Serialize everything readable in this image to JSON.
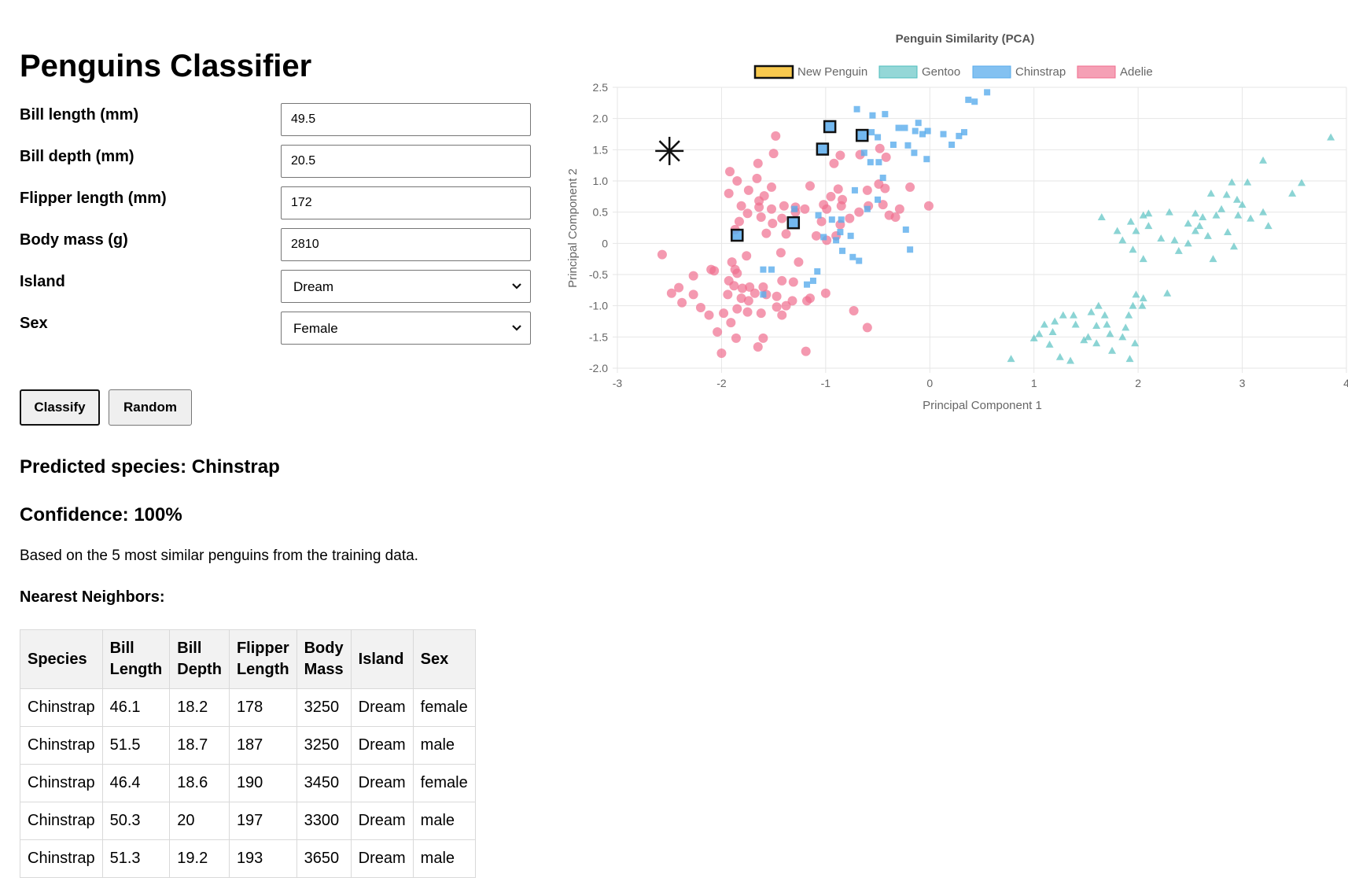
{
  "page": {
    "title": "Penguins Classifier"
  },
  "form": {
    "bill_length": {
      "label": "Bill length (mm)",
      "value": "49.5"
    },
    "bill_depth": {
      "label": "Bill depth (mm)",
      "value": "20.5"
    },
    "flipper_length": {
      "label": "Flipper length (mm)",
      "value": "172"
    },
    "body_mass": {
      "label": "Body mass (g)",
      "value": "2810"
    },
    "island": {
      "label": "Island",
      "value": "Dream"
    },
    "sex": {
      "label": "Sex",
      "value": "Female"
    }
  },
  "buttons": {
    "classify": "Classify",
    "random": "Random"
  },
  "result": {
    "prediction": "Predicted species: Chinstrap",
    "confidence": "Confidence: 100%",
    "note": "Based on the 5 most similar penguins from the training data.",
    "neighbors_heading": "Nearest Neighbors:"
  },
  "neighbors_table": {
    "headers": [
      [
        "Species"
      ],
      [
        "Bill",
        "Length"
      ],
      [
        "Bill",
        "Depth"
      ],
      [
        "Flipper",
        "Length"
      ],
      [
        "Body",
        "Mass"
      ],
      [
        "Island"
      ],
      [
        "Sex"
      ]
    ],
    "rows": [
      [
        "Chinstrap",
        "46.1",
        "18.2",
        "178",
        "3250",
        "Dream",
        "female"
      ],
      [
        "Chinstrap",
        "51.5",
        "18.7",
        "187",
        "3250",
        "Dream",
        "male"
      ],
      [
        "Chinstrap",
        "46.4",
        "18.6",
        "190",
        "3450",
        "Dream",
        "female"
      ],
      [
        "Chinstrap",
        "50.3",
        "20",
        "197",
        "3300",
        "Dream",
        "male"
      ],
      [
        "Chinstrap",
        "51.3",
        "19.2",
        "193",
        "3650",
        "Dream",
        "male"
      ]
    ]
  },
  "colors": {
    "adelie": "#f06d8e",
    "chinstrap": "#5aacec",
    "gentoo": "#4dbdbd",
    "new_penguin_fill": "#f8c94e",
    "grid": "#e6e6e6",
    "axis_text": "#666666"
  },
  "chart_data": {
    "type": "scatter",
    "title": "Penguin Similarity (PCA)",
    "xlabel": "Principal Component 1",
    "ylabel": "Principal Component 2",
    "xlim": [
      -3,
      4
    ],
    "ylim": [
      -2.0,
      2.5
    ],
    "x_ticks": [
      "-3",
      "-2",
      "-1",
      "0",
      "1",
      "2",
      "3",
      "4"
    ],
    "y_ticks": [
      "2.5",
      "2.0",
      "1.5",
      "1.0",
      "0.5",
      "0",
      "-0.5",
      "-1.0",
      "-1.5",
      "-2.0"
    ],
    "grid": true,
    "legend_position": "top",
    "legend": [
      "New Penguin",
      "Gentoo",
      "Chinstrap",
      "Adelie"
    ],
    "series": [
      {
        "name": "Adelie",
        "marker": "circle",
        "points": [
          [
            -1.48,
            1.72
          ],
          [
            -1.5,
            1.44
          ],
          [
            -1.65,
            1.28
          ],
          [
            -1.92,
            1.15
          ],
          [
            -1.66,
            1.04
          ],
          [
            -1.52,
            0.9
          ],
          [
            -1.74,
            0.85
          ],
          [
            -1.85,
            1.0
          ],
          [
            -1.59,
            0.76
          ],
          [
            -1.64,
            0.68
          ],
          [
            -1.93,
            0.8
          ],
          [
            -1.81,
            0.6
          ],
          [
            -1.64,
            0.58
          ],
          [
            -1.52,
            0.55
          ],
          [
            -1.4,
            0.6
          ],
          [
            -1.29,
            0.58
          ],
          [
            -1.75,
            0.48
          ],
          [
            -1.62,
            0.42
          ],
          [
            -1.42,
            0.4
          ],
          [
            -1.51,
            0.32
          ],
          [
            -1.83,
            0.35
          ],
          [
            -1.87,
            0.22
          ],
          [
            -1.57,
            0.16
          ],
          [
            -1.38,
            0.15
          ],
          [
            -1.29,
            0.5
          ],
          [
            -1.2,
            0.55
          ],
          [
            -1.02,
            0.62
          ],
          [
            -0.99,
            0.55
          ],
          [
            -0.85,
            0.6
          ],
          [
            -0.68,
            0.5
          ],
          [
            -0.59,
            0.6
          ],
          [
            -0.45,
            0.62
          ],
          [
            -0.29,
            0.55
          ],
          [
            -0.39,
            0.45
          ],
          [
            -0.84,
            0.7
          ],
          [
            -0.95,
            0.75
          ],
          [
            -0.88,
            0.87
          ],
          [
            -1.15,
            0.92
          ],
          [
            -0.6,
            0.85
          ],
          [
            -0.49,
            0.95
          ],
          [
            -0.43,
            0.88
          ],
          [
            -0.19,
            0.9
          ],
          [
            -0.01,
            0.6
          ],
          [
            -0.33,
            0.42
          ],
          [
            -1.04,
            0.35
          ],
          [
            -0.77,
            0.4
          ],
          [
            -0.86,
            0.3
          ],
          [
            -1.09,
            0.12
          ],
          [
            -0.99,
            0.05
          ],
          [
            -0.9,
            0.12
          ],
          [
            -0.92,
            1.28
          ],
          [
            -0.67,
            1.42
          ],
          [
            -0.42,
            1.38
          ],
          [
            -0.48,
            1.52
          ],
          [
            -0.86,
            1.41
          ],
          [
            -2.57,
            -0.18
          ],
          [
            -2.27,
            -0.52
          ],
          [
            -2.1,
            -0.42
          ],
          [
            -2.07,
            -0.44
          ],
          [
            -1.87,
            -0.42
          ],
          [
            -1.85,
            -0.48
          ],
          [
            -1.93,
            -0.6
          ],
          [
            -1.88,
            -0.68
          ],
          [
            -1.8,
            -0.72
          ],
          [
            -1.73,
            -0.7
          ],
          [
            -1.6,
            -0.7
          ],
          [
            -1.42,
            -0.6
          ],
          [
            -1.31,
            -0.62
          ],
          [
            -1.47,
            -0.85
          ],
          [
            -1.32,
            -0.92
          ],
          [
            -1.57,
            -0.82
          ],
          [
            -1.68,
            -0.8
          ],
          [
            -1.74,
            -0.92
          ],
          [
            -1.81,
            -0.88
          ],
          [
            -1.94,
            -0.82
          ],
          [
            -2.27,
            -0.82
          ],
          [
            -2.41,
            -0.71
          ],
          [
            -2.48,
            -0.8
          ],
          [
            -2.38,
            -0.95
          ],
          [
            -2.2,
            -1.03
          ],
          [
            -1.98,
            -1.12
          ],
          [
            -1.85,
            -1.05
          ],
          [
            -1.75,
            -1.1
          ],
          [
            -1.62,
            -1.12
          ],
          [
            -1.47,
            -1.02
          ],
          [
            -1.38,
            -1.0
          ],
          [
            -1.42,
            -1.15
          ],
          [
            -2.12,
            -1.15
          ],
          [
            -1.91,
            -1.27
          ],
          [
            -2.04,
            -1.42
          ],
          [
            -1.86,
            -1.52
          ],
          [
            -1.6,
            -1.52
          ],
          [
            -1.65,
            -1.66
          ],
          [
            -2.0,
            -1.76
          ],
          [
            -1.19,
            -1.73
          ],
          [
            -1.18,
            -0.92
          ],
          [
            -1.0,
            -0.8
          ],
          [
            -1.15,
            -0.88
          ],
          [
            -0.73,
            -1.08
          ],
          [
            -0.6,
            -1.35
          ],
          [
            -1.43,
            -0.15
          ],
          [
            -1.76,
            -0.2
          ],
          [
            -1.9,
            -0.3
          ],
          [
            -1.26,
            -0.3
          ]
        ]
      },
      {
        "name": "Chinstrap",
        "marker": "square",
        "points": [
          [
            0.37,
            2.3
          ],
          [
            0.43,
            2.27
          ],
          [
            0.55,
            2.42
          ],
          [
            -0.7,
            2.15
          ],
          [
            -0.55,
            2.05
          ],
          [
            -0.43,
            2.07
          ],
          [
            -0.3,
            1.85
          ],
          [
            -0.24,
            1.85
          ],
          [
            -0.11,
            1.93
          ],
          [
            -0.02,
            1.8
          ],
          [
            0.13,
            1.75
          ],
          [
            0.28,
            1.72
          ],
          [
            0.33,
            1.78
          ],
          [
            0.21,
            1.58
          ],
          [
            -0.15,
            1.45
          ],
          [
            -0.03,
            1.35
          ],
          [
            -0.21,
            1.57
          ],
          [
            -0.35,
            1.58
          ],
          [
            -0.5,
            1.7
          ],
          [
            -0.56,
            1.78
          ],
          [
            -0.63,
            1.45
          ],
          [
            -0.49,
            1.3
          ],
          [
            -0.57,
            1.3
          ],
          [
            -0.45,
            1.05
          ],
          [
            -0.07,
            1.75
          ],
          [
            -0.14,
            1.8
          ],
          [
            -0.86,
            0.18
          ],
          [
            -0.76,
            0.12
          ],
          [
            -1.02,
            0.1
          ],
          [
            -0.9,
            0.05
          ],
          [
            -0.84,
            -0.12
          ],
          [
            -0.74,
            -0.22
          ],
          [
            -0.68,
            -0.28
          ],
          [
            -0.5,
            0.7
          ],
          [
            -0.6,
            0.55
          ],
          [
            -0.72,
            0.85
          ],
          [
            -0.85,
            0.38
          ],
          [
            -0.94,
            0.38
          ],
          [
            -1.3,
            0.55
          ],
          [
            -1.07,
            0.45
          ],
          [
            -0.23,
            0.22
          ],
          [
            -0.19,
            -0.1
          ],
          [
            -1.6,
            -0.42
          ],
          [
            -1.52,
            -0.42
          ],
          [
            -1.12,
            -0.6
          ],
          [
            -1.18,
            -0.66
          ],
          [
            -1.6,
            -0.82
          ],
          [
            -1.08,
            -0.45
          ]
        ]
      },
      {
        "name": "Gentoo",
        "marker": "triangle",
        "points": [
          [
            3.85,
            1.7
          ],
          [
            3.2,
            1.33
          ],
          [
            3.57,
            0.97
          ],
          [
            3.48,
            0.8
          ],
          [
            2.9,
            0.98
          ],
          [
            3.05,
            0.98
          ],
          [
            2.7,
            0.8
          ],
          [
            2.85,
            0.78
          ],
          [
            2.95,
            0.7
          ],
          [
            3.0,
            0.62
          ],
          [
            3.2,
            0.5
          ],
          [
            3.25,
            0.28
          ],
          [
            2.8,
            0.55
          ],
          [
            2.75,
            0.45
          ],
          [
            2.62,
            0.42
          ],
          [
            2.55,
            0.48
          ],
          [
            2.48,
            0.32
          ],
          [
            2.59,
            0.28
          ],
          [
            2.55,
            0.2
          ],
          [
            2.67,
            0.12
          ],
          [
            2.86,
            0.18
          ],
          [
            2.96,
            0.45
          ],
          [
            3.08,
            0.4
          ],
          [
            2.92,
            -0.05
          ],
          [
            2.72,
            -0.25
          ],
          [
            2.48,
            0.0
          ],
          [
            2.35,
            0.05
          ],
          [
            2.39,
            -0.12
          ],
          [
            2.22,
            0.08
          ],
          [
            2.1,
            0.28
          ],
          [
            2.05,
            0.45
          ],
          [
            1.98,
            0.2
          ],
          [
            1.93,
            0.35
          ],
          [
            2.1,
            0.48
          ],
          [
            2.3,
            0.5
          ],
          [
            1.8,
            0.2
          ],
          [
            1.85,
            0.05
          ],
          [
            1.95,
            -0.1
          ],
          [
            2.05,
            -0.25
          ],
          [
            1.65,
            0.42
          ],
          [
            1.98,
            -0.82
          ],
          [
            2.05,
            -0.88
          ],
          [
            2.04,
            -1.0
          ],
          [
            1.95,
            -1.0
          ],
          [
            1.91,
            -1.15
          ],
          [
            1.88,
            -1.35
          ],
          [
            1.85,
            -1.5
          ],
          [
            1.97,
            -1.6
          ],
          [
            1.92,
            -1.85
          ],
          [
            1.75,
            -1.72
          ],
          [
            1.73,
            -1.45
          ],
          [
            1.7,
            -1.3
          ],
          [
            1.68,
            -1.15
          ],
          [
            1.62,
            -1.0
          ],
          [
            1.55,
            -1.1
          ],
          [
            1.6,
            -1.32
          ],
          [
            1.52,
            -1.5
          ],
          [
            1.48,
            -1.55
          ],
          [
            1.4,
            -1.3
          ],
          [
            1.38,
            -1.15
          ],
          [
            1.28,
            -1.15
          ],
          [
            1.2,
            -1.25
          ],
          [
            1.1,
            -1.3
          ],
          [
            1.18,
            -1.42
          ],
          [
            1.05,
            -1.45
          ],
          [
            1.15,
            -1.62
          ],
          [
            1.25,
            -1.82
          ],
          [
            1.35,
            -1.88
          ],
          [
            0.78,
            -1.85
          ],
          [
            1.0,
            -1.52
          ],
          [
            1.6,
            -1.6
          ],
          [
            2.28,
            -0.8
          ]
        ]
      },
      {
        "name": "Nearest Neighbors",
        "marker": "square-highlight",
        "points": [
          [
            -0.96,
            1.87
          ],
          [
            -0.65,
            1.73
          ],
          [
            -1.03,
            1.51
          ],
          [
            -1.31,
            0.33
          ],
          [
            -1.85,
            0.13
          ]
        ]
      },
      {
        "name": "New Penguin",
        "marker": "star",
        "points": [
          [
            -2.5,
            1.48
          ]
        ]
      }
    ]
  }
}
